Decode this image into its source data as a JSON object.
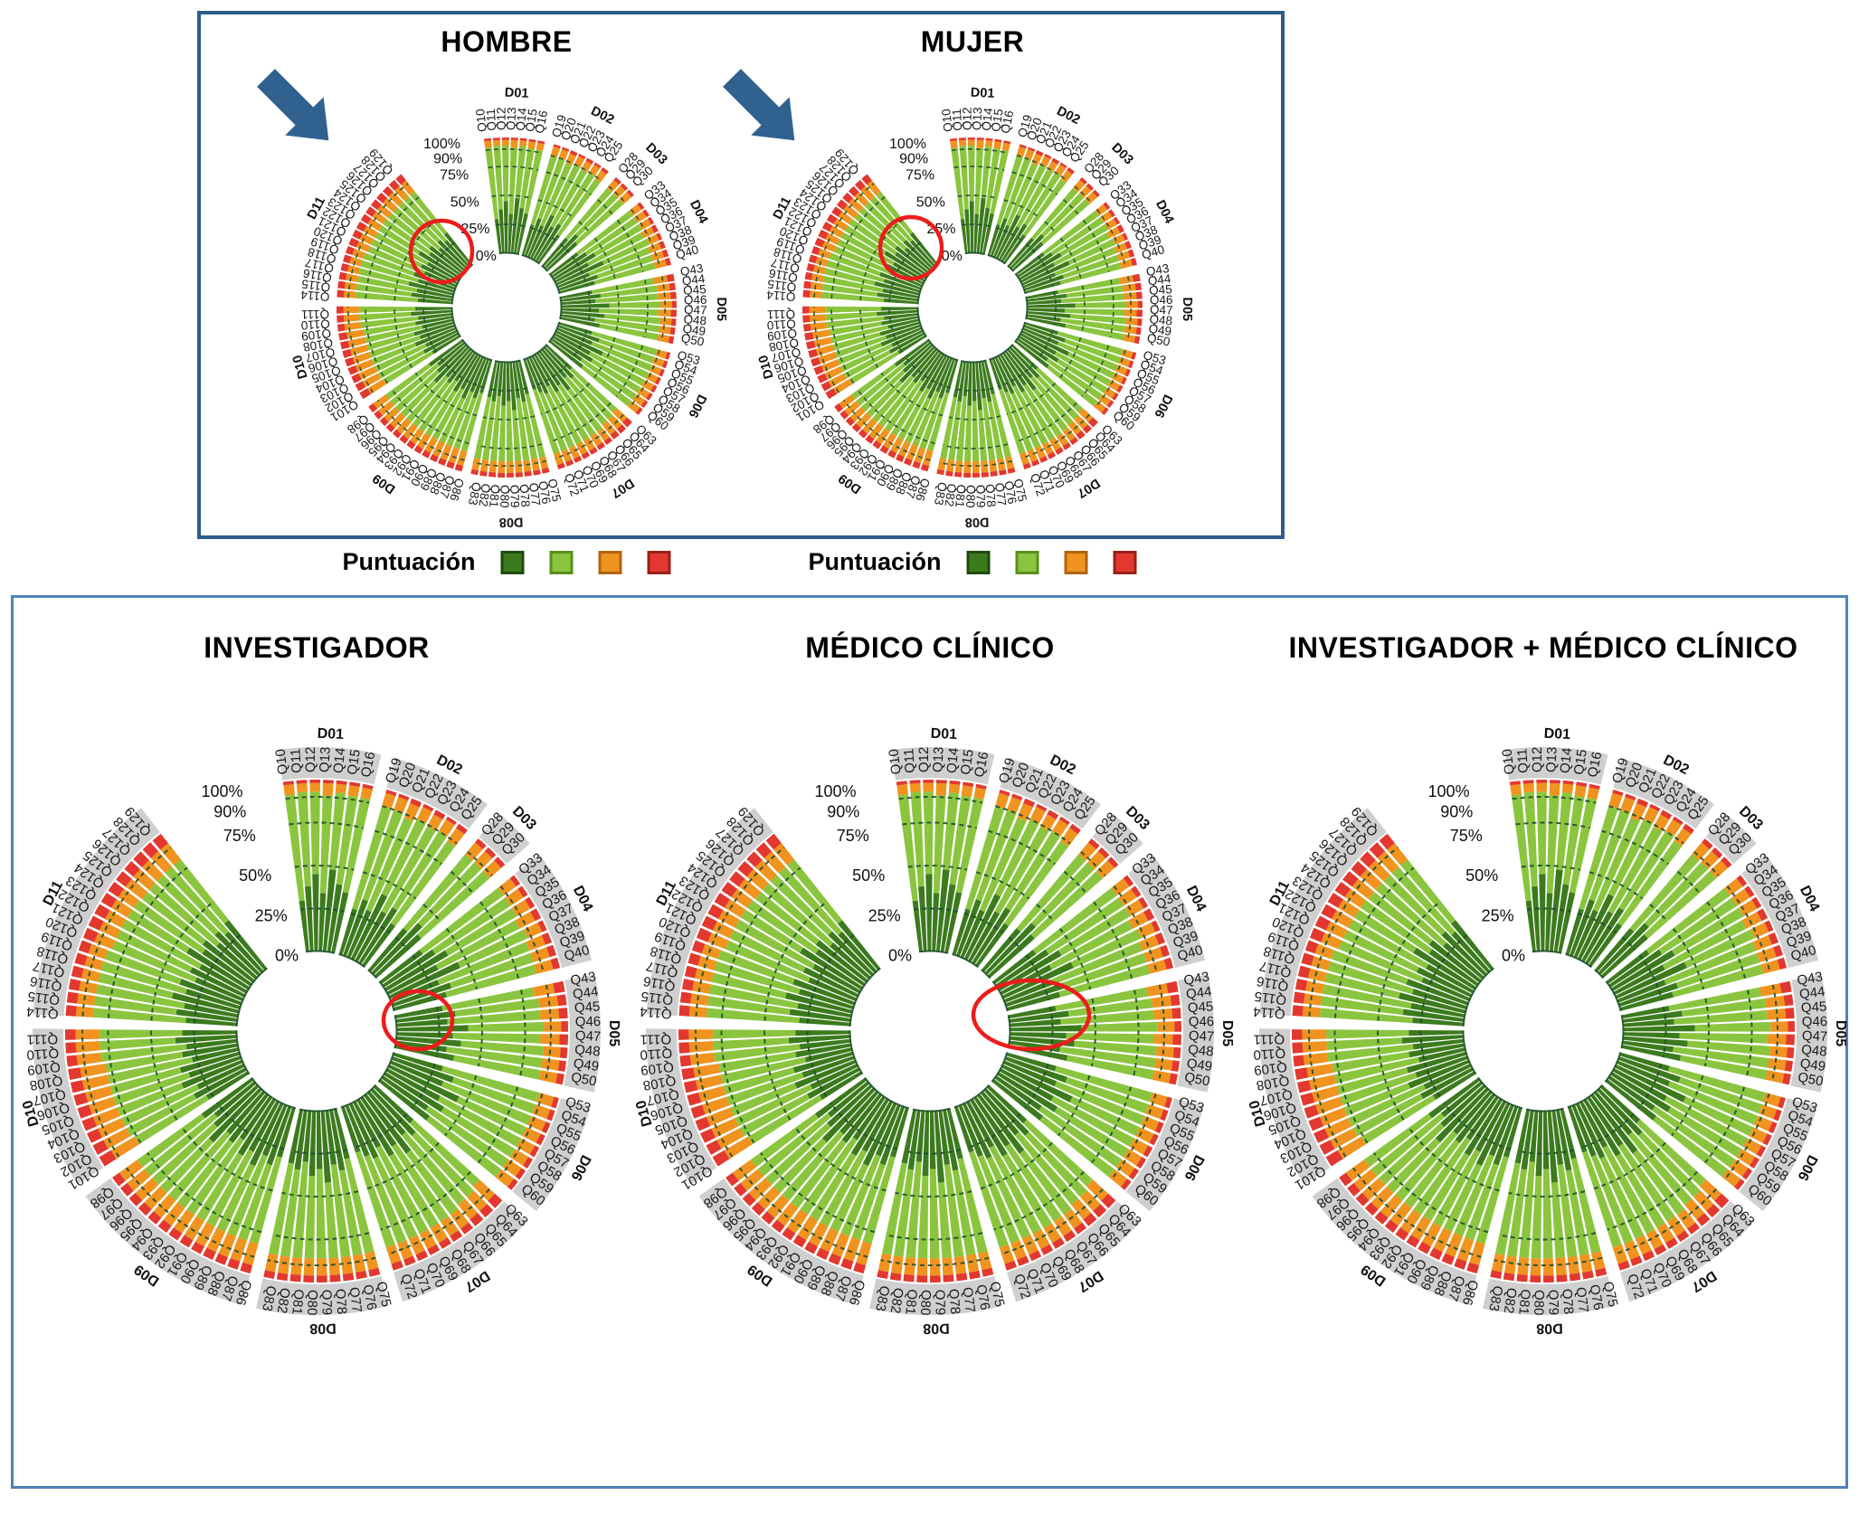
{
  "colors": {
    "top_box_border": "#2c5d8a",
    "bottom_box_border": "#4d82b8",
    "arrow": "#30618f",
    "highlight": "#ec1c1c",
    "grey_ring": "#c7c7c7",
    "gridline": "#1b4f2a"
  },
  "chart_data": {
    "type": "bar",
    "subtype": "circular-stacked-percentage",
    "note": "Five polar stacked-bar charts sharing the same question/domain structure; per-segment percentages are visual estimates read from the figure.",
    "charts": [
      {
        "title": "HOMBRE",
        "panel": "top",
        "arrow": true,
        "highlight": "circle"
      },
      {
        "title": "MUJER",
        "panel": "top",
        "arrow": true,
        "highlight": "circle"
      },
      {
        "title": "INVESTIGADOR",
        "panel": "bottom",
        "arrow": false,
        "highlight": "circle"
      },
      {
        "title": "MÉDICO CLÍNICO",
        "panel": "bottom",
        "arrow": false,
        "highlight": "ellipse"
      },
      {
        "title": "INVESTIGADOR + MÉDICO CLÍNICO",
        "panel": "bottom",
        "arrow": false,
        "highlight": null
      }
    ],
    "radial_axis": {
      "ticks": [
        "100%",
        "90%",
        "75%",
        "50%",
        "25%",
        "0%"
      ],
      "tick_values": [
        100,
        90,
        75,
        50,
        25,
        0
      ],
      "gridlines": [
        25,
        50,
        75,
        90
      ],
      "range": [
        0,
        100
      ]
    },
    "score_legend": {
      "title": "Puntuación",
      "levels": [
        {
          "name": "dark-green",
          "color": "#3c7a1e",
          "border": "#1f4a0f"
        },
        {
          "name": "light-green",
          "color": "#8bc53f",
          "border": "#5a8f1d"
        },
        {
          "name": "orange",
          "color": "#f0931f",
          "border": "#b06510"
        },
        {
          "name": "red",
          "color": "#e2382f",
          "border": "#9b201a"
        }
      ]
    },
    "domains": [
      {
        "label": "D01",
        "questions": [
          "Q10",
          "Q11",
          "Q12",
          "Q13",
          "Q14",
          "Q15",
          "Q16"
        ],
        "stacks": [
          [
            30,
            62,
            6,
            2
          ],
          [
            38,
            55,
            5,
            2
          ],
          [
            45,
            48,
            5,
            2
          ],
          [
            34,
            57,
            7,
            2
          ],
          [
            48,
            45,
            5,
            2
          ],
          [
            40,
            52,
            6,
            2
          ],
          [
            36,
            56,
            6,
            2
          ]
        ]
      },
      {
        "label": "D02",
        "questions": [
          "Q19",
          "Q20",
          "Q21",
          "Q22",
          "Q23",
          "Q24",
          "Q25"
        ],
        "stacks": [
          [
            28,
            62,
            8,
            2
          ],
          [
            35,
            55,
            8,
            2
          ],
          [
            30,
            58,
            9,
            3
          ],
          [
            42,
            48,
            8,
            2
          ],
          [
            33,
            56,
            8,
            3
          ],
          [
            38,
            52,
            8,
            2
          ],
          [
            30,
            58,
            9,
            3
          ]
        ]
      },
      {
        "label": "D03",
        "questions": [
          "Q28",
          "Q29",
          "Q30"
        ],
        "stacks": [
          [
            32,
            56,
            9,
            3
          ],
          [
            40,
            48,
            9,
            3
          ],
          [
            35,
            53,
            9,
            3
          ]
        ]
      },
      {
        "label": "D04",
        "questions": [
          "Q33",
          "Q34",
          "Q35",
          "Q36",
          "Q37",
          "Q38",
          "Q39",
          "Q40"
        ],
        "stacks": [
          [
            30,
            58,
            9,
            3
          ],
          [
            36,
            52,
            9,
            3
          ],
          [
            42,
            46,
            9,
            3
          ],
          [
            33,
            53,
            10,
            4
          ],
          [
            45,
            43,
            9,
            3
          ],
          [
            30,
            56,
            10,
            4
          ],
          [
            36,
            50,
            10,
            4
          ],
          [
            32,
            54,
            10,
            4
          ]
        ]
      },
      {
        "label": "D05",
        "questions": [
          "Q43",
          "Q44",
          "Q45",
          "Q46",
          "Q47",
          "Q48",
          "Q49",
          "Q50"
        ],
        "stacks": [
          [
            28,
            54,
            12,
            6
          ],
          [
            35,
            49,
            11,
            5
          ],
          [
            30,
            54,
            11,
            5
          ],
          [
            42,
            44,
            10,
            4
          ],
          [
            33,
            51,
            11,
            5
          ],
          [
            38,
            48,
            10,
            4
          ],
          [
            30,
            56,
            10,
            4
          ],
          [
            35,
            51,
            10,
            4
          ]
        ]
      },
      {
        "label": "D06",
        "questions": [
          "Q53",
          "Q54",
          "Q55",
          "Q56",
          "Q57",
          "Q58",
          "Q59",
          "Q60"
        ],
        "stacks": [
          [
            30,
            58,
            9,
            3
          ],
          [
            38,
            50,
            9,
            3
          ],
          [
            33,
            55,
            9,
            3
          ],
          [
            45,
            43,
            9,
            3
          ],
          [
            35,
            53,
            9,
            3
          ],
          [
            40,
            48,
            9,
            3
          ],
          [
            32,
            56,
            9,
            3
          ],
          [
            36,
            52,
            9,
            3
          ]
        ]
      },
      {
        "label": "D07",
        "questions": [
          "Q63",
          "Q64",
          "Q65",
          "Q66",
          "Q67",
          "Q68",
          "Q69",
          "Q70",
          "Q71",
          "Q72"
        ],
        "stacks": [
          [
            30,
            52,
            12,
            6
          ],
          [
            36,
            48,
            11,
            5
          ],
          [
            32,
            52,
            11,
            5
          ],
          [
            42,
            44,
            10,
            4
          ],
          [
            34,
            52,
            10,
            4
          ],
          [
            38,
            48,
            10,
            4
          ],
          [
            30,
            56,
            10,
            4
          ],
          [
            35,
            51,
            10,
            4
          ],
          [
            32,
            54,
            10,
            4
          ],
          [
            28,
            58,
            10,
            4
          ]
        ]
      },
      {
        "label": "D08",
        "questions": [
          "Q75",
          "Q76",
          "Q77",
          "Q78",
          "Q79",
          "Q80",
          "Q81",
          "Q82",
          "Q83"
        ],
        "stacks": [
          [
            30,
            56,
            10,
            4
          ],
          [
            36,
            50,
            10,
            4
          ],
          [
            32,
            54,
            10,
            4
          ],
          [
            42,
            44,
            10,
            4
          ],
          [
            34,
            52,
            10,
            4
          ],
          [
            38,
            48,
            10,
            4
          ],
          [
            30,
            56,
            10,
            4
          ],
          [
            35,
            51,
            10,
            4
          ],
          [
            32,
            54,
            10,
            4
          ]
        ]
      },
      {
        "label": "D09",
        "questions": [
          "Q86",
          "Q87",
          "Q88",
          "Q89",
          "Q90",
          "Q91",
          "Q92",
          "Q93",
          "Q94",
          "Q95",
          "Q96",
          "Q97",
          "Q98"
        ],
        "stacks": [
          [
            30,
            52,
            13,
            5
          ],
          [
            36,
            46,
            13,
            5
          ],
          [
            32,
            50,
            13,
            5
          ],
          [
            40,
            42,
            13,
            5
          ],
          [
            33,
            49,
            13,
            5
          ],
          [
            38,
            44,
            13,
            5
          ],
          [
            30,
            52,
            13,
            5
          ],
          [
            35,
            47,
            13,
            5
          ],
          [
            32,
            50,
            13,
            5
          ],
          [
            42,
            40,
            13,
            5
          ],
          [
            34,
            48,
            13,
            5
          ],
          [
            30,
            52,
            13,
            5
          ],
          [
            36,
            46,
            13,
            5
          ]
        ]
      },
      {
        "label": "D10",
        "questions": [
          "Q101",
          "Q102",
          "Q103",
          "Q104",
          "Q105",
          "Q106",
          "Q107",
          "Q108",
          "Q109",
          "Q110",
          "Q111"
        ],
        "stacks": [
          [
            28,
            48,
            16,
            8
          ],
          [
            34,
            44,
            15,
            7
          ],
          [
            30,
            48,
            15,
            7
          ],
          [
            38,
            40,
            15,
            7
          ],
          [
            32,
            46,
            15,
            7
          ],
          [
            36,
            42,
            15,
            7
          ],
          [
            28,
            50,
            15,
            7
          ],
          [
            33,
            45,
            15,
            7
          ],
          [
            30,
            50,
            14,
            6
          ],
          [
            36,
            44,
            14,
            6
          ],
          [
            32,
            48,
            14,
            6
          ]
        ]
      },
      {
        "label": "D11",
        "questions": [
          "Q114",
          "Q115",
          "Q116",
          "Q117",
          "Q118",
          "Q119",
          "Q120",
          "Q121",
          "Q122",
          "Q123",
          "Q124",
          "Q125",
          "Q126",
          "Q127",
          "Q128",
          "Q129"
        ],
        "stacks": [
          [
            30,
            54,
            10,
            6
          ],
          [
            36,
            48,
            10,
            6
          ],
          [
            32,
            52,
            10,
            6
          ],
          [
            40,
            44,
            10,
            6
          ],
          [
            33,
            51,
            10,
            6
          ],
          [
            38,
            46,
            10,
            6
          ],
          [
            30,
            52,
            11,
            7
          ],
          [
            35,
            47,
            11,
            7
          ],
          [
            31,
            51,
            11,
            7
          ],
          [
            42,
            40,
            11,
            7
          ],
          [
            34,
            48,
            11,
            7
          ],
          [
            37,
            44,
            12,
            7
          ],
          [
            30,
            51,
            12,
            7
          ],
          [
            35,
            46,
            12,
            7
          ],
          [
            31,
            50,
            12,
            7
          ],
          [
            36,
            45,
            12,
            7
          ]
        ]
      }
    ]
  }
}
